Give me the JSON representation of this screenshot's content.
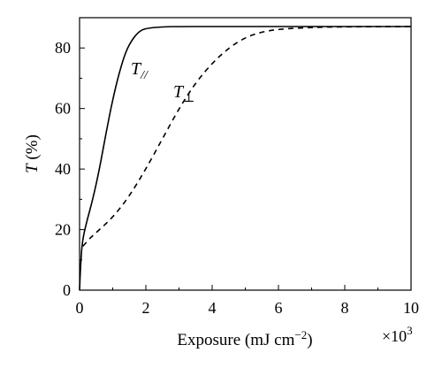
{
  "chart_data": {
    "type": "line",
    "xlabel": "Exposure (mJ cm",
    "xlabel_sup": "−2",
    "xlabel_close": ")",
    "x_multiplier": "×10",
    "x_multiplier_sup": "3",
    "ylabel_italic": "T",
    "ylabel_rest": " (%)",
    "xlim": [
      0,
      10
    ],
    "ylim": [
      0,
      90
    ],
    "x_ticks": [
      0,
      2,
      4,
      6,
      8,
      10
    ],
    "y_ticks": [
      0,
      20,
      40,
      60,
      80
    ],
    "x_tick_labels": [
      "0",
      "2",
      "4",
      "6",
      "8",
      "10"
    ],
    "y_tick_labels": [
      "0",
      "20",
      "40",
      "60",
      "80"
    ],
    "grid": false,
    "series": [
      {
        "name": "T//",
        "label_main": "T",
        "label_sub": "//",
        "style": "solid",
        "color": "#000000",
        "points": [
          [
            0.0,
            0
          ],
          [
            0.03,
            8
          ],
          [
            0.08,
            16
          ],
          [
            0.2,
            22
          ],
          [
            0.4,
            30
          ],
          [
            0.6,
            40
          ],
          [
            0.8,
            52
          ],
          [
            1.0,
            63
          ],
          [
            1.2,
            72
          ],
          [
            1.4,
            79
          ],
          [
            1.6,
            83
          ],
          [
            1.8,
            85.5
          ],
          [
            2.0,
            86.5
          ],
          [
            2.5,
            87
          ],
          [
            3.0,
            87.1
          ],
          [
            4.0,
            87.2
          ],
          [
            6.0,
            87.2
          ],
          [
            8.0,
            87.2
          ],
          [
            10.0,
            87.2
          ]
        ]
      },
      {
        "name": "T⊥",
        "label_main": "T",
        "label_sub": "⊥",
        "style": "dashed",
        "color": "#000000",
        "points": [
          [
            0.1,
            14.5
          ],
          [
            0.3,
            17
          ],
          [
            0.5,
            19
          ],
          [
            1.0,
            24
          ],
          [
            1.5,
            31
          ],
          [
            2.0,
            40
          ],
          [
            2.5,
            50
          ],
          [
            3.0,
            60
          ],
          [
            3.5,
            68.5
          ],
          [
            4.0,
            75
          ],
          [
            4.5,
            80
          ],
          [
            5.0,
            83.5
          ],
          [
            5.5,
            85.3
          ],
          [
            6.0,
            86.2
          ],
          [
            7.0,
            86.8
          ],
          [
            8.0,
            87
          ],
          [
            10.0,
            87.1
          ]
        ]
      }
    ],
    "plateau": 87
  }
}
